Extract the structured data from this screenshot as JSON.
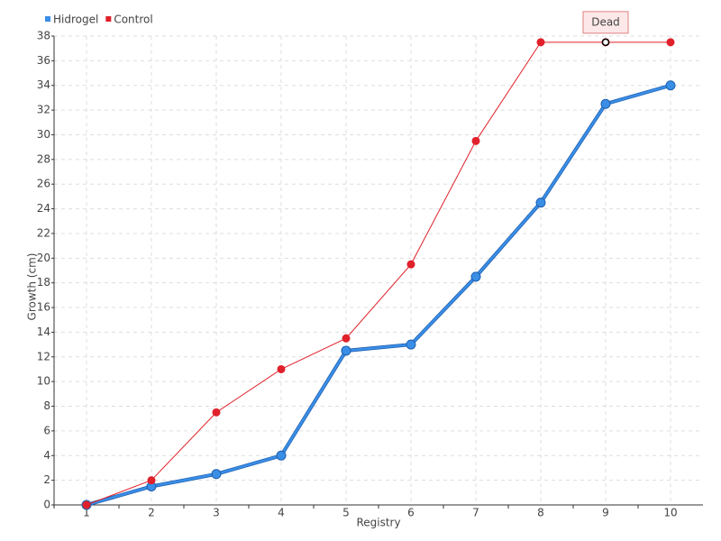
{
  "chart_data": {
    "type": "line",
    "x_label": "Registry",
    "y_label": "Growth (cm)",
    "categories": [
      "1",
      "2",
      "3",
      "4",
      "5",
      "6",
      "7",
      "8",
      "9",
      "10"
    ],
    "series": [
      {
        "name": "Hidrogel",
        "color": "#3a8ee6",
        "values": [
          0,
          1.5,
          2.5,
          4,
          12.5,
          13,
          18.5,
          24.5,
          32.5,
          34
        ]
      },
      {
        "name": "Control",
        "color": "#e0202a",
        "values": [
          0,
          2,
          7.5,
          11,
          13.5,
          19.5,
          29.5,
          37.5,
          37.5,
          37.5
        ]
      }
    ],
    "annotation": "Dead",
    "ylim": [
      0,
      38
    ],
    "yticks": [
      0,
      2,
      4,
      6,
      8,
      10,
      12,
      14,
      16,
      18,
      20,
      22,
      24,
      26,
      28,
      30,
      32,
      34,
      36,
      38
    ],
    "grid": true,
    "legend": "top-left"
  }
}
